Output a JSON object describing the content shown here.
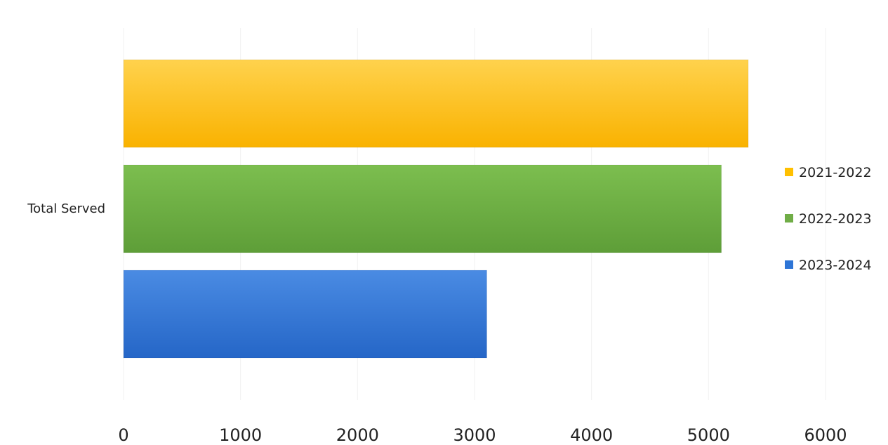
{
  "chart_data": {
    "type": "bar",
    "orientation": "horizontal",
    "categories": [
      "Total Served"
    ],
    "series": [
      {
        "name": "2021-2022",
        "color": "#FFC000",
        "values": [
          5340
        ]
      },
      {
        "name": "2022-2023",
        "color": "#70AD47",
        "values": [
          5110
        ]
      },
      {
        "name": "2023-2024",
        "color": "#2E75D6",
        "values": [
          3105
        ]
      }
    ],
    "xlim": [
      0,
      6000
    ],
    "x_ticks": [
      "0",
      "1000",
      "2000",
      "3000",
      "4000",
      "5000",
      "6000"
    ],
    "grid": true,
    "legend_position": "right"
  }
}
